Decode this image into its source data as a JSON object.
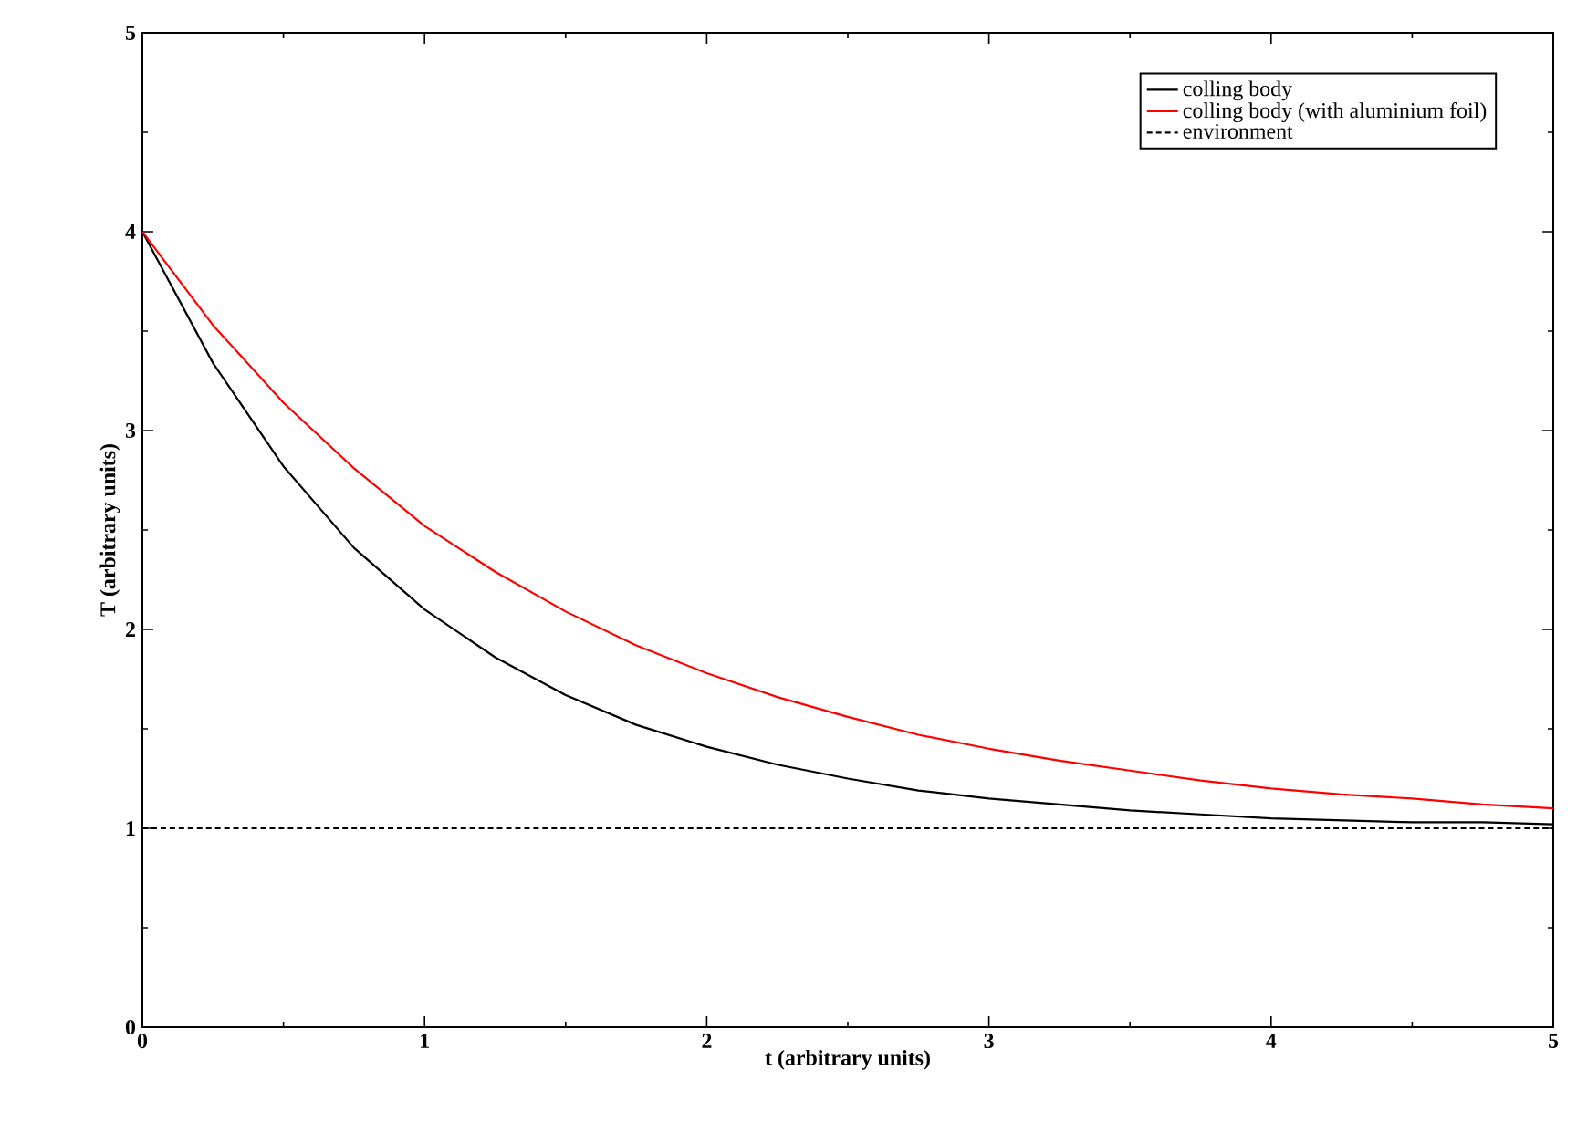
{
  "chart_data": {
    "type": "line",
    "xlabel": "t (arbitrary units)",
    "ylabel": "T (arbitrary units)",
    "xlim": [
      0,
      5
    ],
    "ylim": [
      0,
      5
    ],
    "xticks": [
      0,
      1,
      2,
      3,
      4,
      5
    ],
    "yticks": [
      0,
      1,
      2,
      3,
      4,
      5
    ],
    "grid": false,
    "legend": "top right",
    "marker": "none",
    "series": [
      {
        "name": "colling body",
        "color": "#000000",
        "line_style": "solid",
        "x": [
          0,
          0.25,
          0.5,
          0.75,
          1,
          1.25,
          1.5,
          1.75,
          2,
          2.25,
          2.5,
          2.75,
          3,
          3.25,
          3.5,
          3.75,
          4,
          4.25,
          4.5,
          4.75,
          5
        ],
        "values": [
          4,
          3.34,
          2.82,
          2.41,
          2.1,
          1.86,
          1.67,
          1.52,
          1.41,
          1.32,
          1.25,
          1.19,
          1.15,
          1.12,
          1.09,
          1.07,
          1.05,
          1.04,
          1.03,
          1.03,
          1.02
        ]
      },
      {
        "name": "colling body (with aluminium foil)",
        "color": "#ff0000",
        "line_style": "solid",
        "x": [
          0,
          0.25,
          0.5,
          0.75,
          1,
          1.25,
          1.5,
          1.75,
          2,
          2.25,
          2.5,
          2.75,
          3,
          3.25,
          3.5,
          3.75,
          4,
          4.25,
          4.5,
          4.75,
          5
        ],
        "values": [
          4,
          3.53,
          3.14,
          2.81,
          2.52,
          2.29,
          2.09,
          1.92,
          1.78,
          1.66,
          1.56,
          1.47,
          1.4,
          1.34,
          1.29,
          1.24,
          1.2,
          1.17,
          1.15,
          1.12,
          1.1
        ]
      },
      {
        "name": "environment",
        "color": "#000000",
        "line_style": "dashed",
        "x": [
          0,
          5
        ],
        "values": [
          1,
          1
        ]
      }
    ]
  }
}
